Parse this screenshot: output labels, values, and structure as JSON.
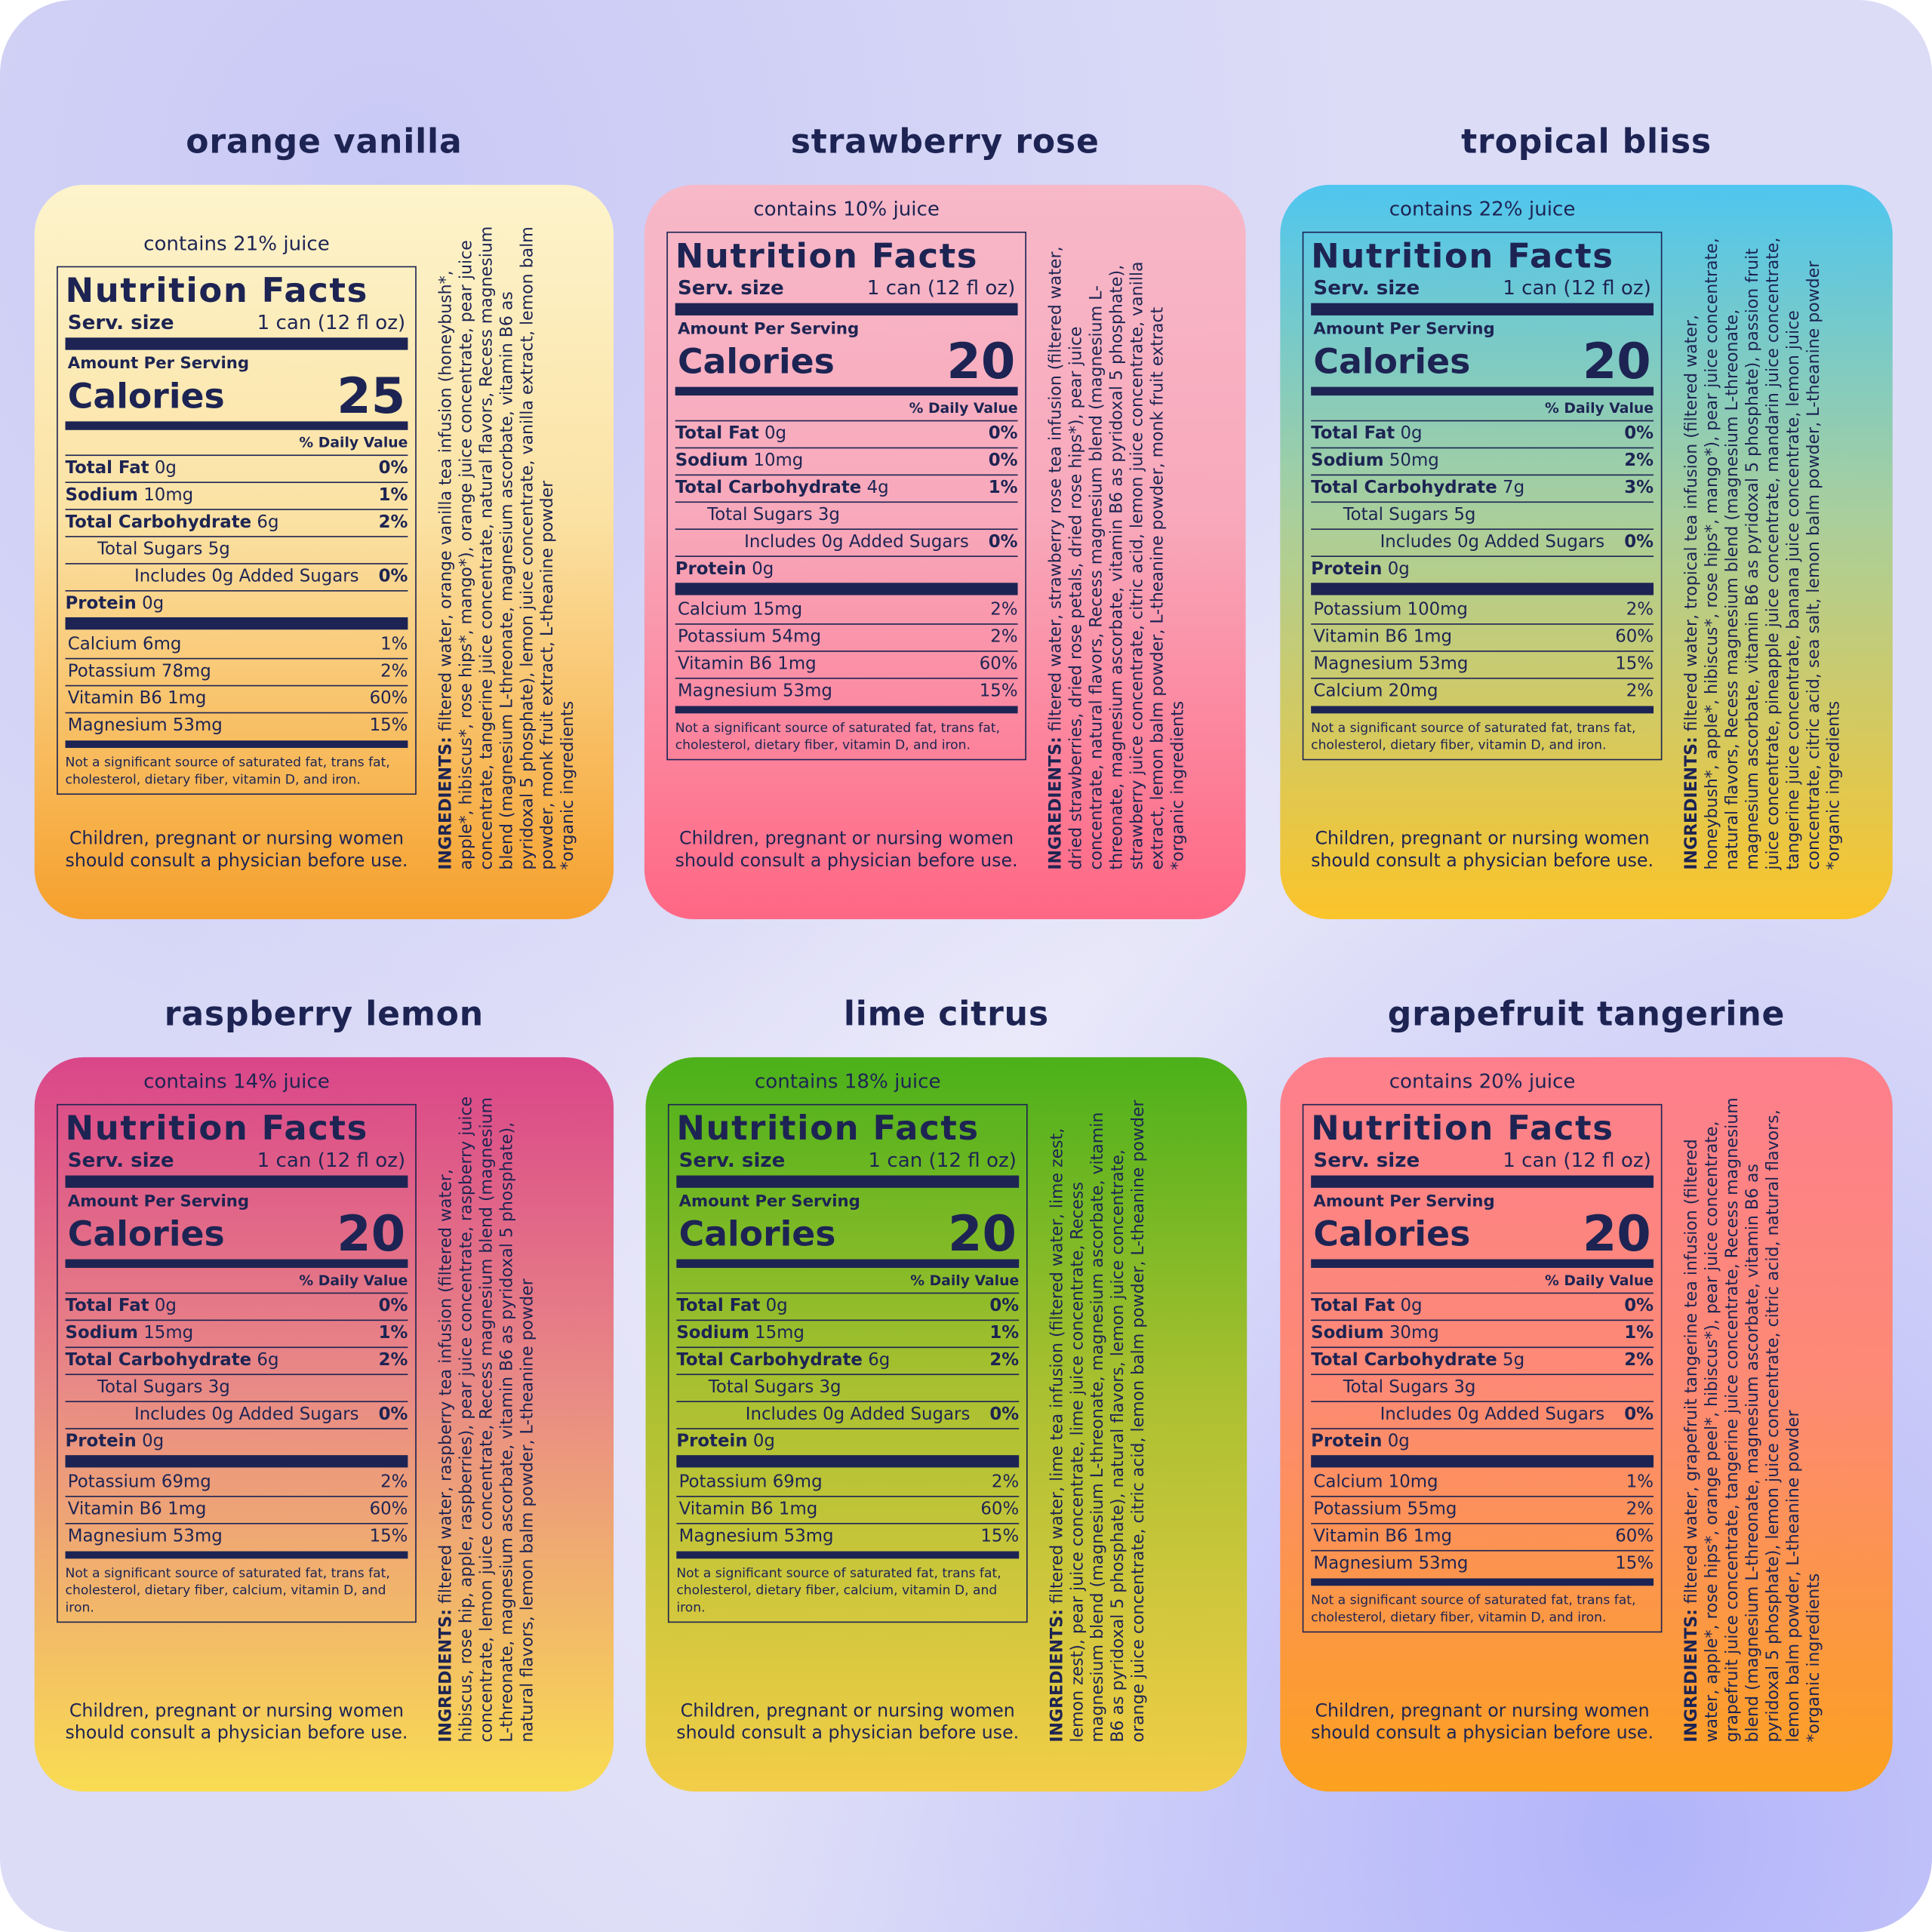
{
  "cards": [
    {
      "title": "orange vanilla",
      "colors": [
        "#fdf4cc",
        "#fbe2a4",
        "#f6a02c"
      ],
      "juice": "contains 21% juice",
      "heading": "Nutrition Facts",
      "serving_label": "Serv. size",
      "serving": "1 can (12 fl oz)",
      "amount_label": "Amount Per Serving",
      "calories_label": "Calories",
      "calories": 25,
      "dv_label": "% Daily Value",
      "rows": [
        {
          "kind": "nutrient",
          "name": "Total Fat",
          "amount": "0g",
          "dv": "0%"
        },
        {
          "kind": "nutrient",
          "name": "Sodium",
          "amount": "10mg",
          "dv": "1%"
        },
        {
          "kind": "nutrient",
          "name": "Total Carbohydrate",
          "amount": "6g",
          "dv": "2%"
        },
        {
          "kind": "sub",
          "name": "Total Sugars",
          "amount": "5g"
        },
        {
          "kind": "added",
          "name": "Includes 0g Added Sugars",
          "dv": "0%"
        },
        {
          "kind": "nutrient",
          "name": "Protein",
          "amount": "0g"
        }
      ],
      "minerals": [
        {
          "name": "Calcium",
          "amount": "6mg",
          "dv": "1%"
        },
        {
          "name": "Potassium",
          "amount": "78mg",
          "dv": "2%"
        },
        {
          "name": "Vitamin B6",
          "amount": "1mg",
          "dv": "60%"
        },
        {
          "name": "Magnesium",
          "amount": "53mg",
          "dv": "15%"
        }
      ],
      "footnote": "Not a significant source of saturated fat, trans fat, cholesterol, dietary fiber, vitamin D, and iron.",
      "warning": "Children, pregnant or nursing women should consult a physician before use.",
      "ingredients_label": "INGREDIENTS:",
      "ingredients": "filtered water, orange vanilla tea infusion (honeybush*, apple*, hibiscus*, rose hips*, mango*), orange juice concentrate, pear juice concentrate, tangerine juice concentrate, natural flavors, Recess magnesium blend (magnesium L-threonate, magnesium ascorbate, vitamin B6 as pyridoxal 5 phosphate), lemon juice concentrate, vanilla extract, lemon balm powder, monk fruit extract, L-theanine powder",
      "note": "*organic ingredients"
    },
    {
      "title": "strawberry rose",
      "colors": [
        "#f7b8c8",
        "#f8a9bb",
        "#ff6784"
      ],
      "juice": "contains 10% juice",
      "heading": "Nutrition Facts",
      "serving_label": "Serv. size",
      "serving": "1 can (12 fl oz)",
      "amount_label": "Amount Per Serving",
      "calories_label": "Calories",
      "calories": 20,
      "dv_label": "% Daily Value",
      "rows": [
        {
          "kind": "nutrient",
          "name": "Total Fat",
          "amount": "0g",
          "dv": "0%"
        },
        {
          "kind": "nutrient",
          "name": "Sodium",
          "amount": "10mg",
          "dv": "0%"
        },
        {
          "kind": "nutrient",
          "name": "Total Carbohydrate",
          "amount": "4g",
          "dv": "1%"
        },
        {
          "kind": "sub",
          "name": "Total Sugars",
          "amount": "3g"
        },
        {
          "kind": "added",
          "name": "Includes 0g Added Sugars",
          "dv": "0%"
        },
        {
          "kind": "nutrient",
          "name": "Protein",
          "amount": "0g"
        }
      ],
      "minerals": [
        {
          "name": "Calcium",
          "amount": "15mg",
          "dv": "2%"
        },
        {
          "name": "Potassium",
          "amount": "54mg",
          "dv": "2%"
        },
        {
          "name": "Vitamin B6",
          "amount": "1mg",
          "dv": "60%"
        },
        {
          "name": "Magnesium",
          "amount": "53mg",
          "dv": "15%"
        }
      ],
      "footnote": "Not a significant source of saturated fat, trans fat, cholesterol, dietary fiber, vitamin D, and iron.",
      "warning": "Children, pregnant or nursing women should consult a physician before use.",
      "ingredients_label": "INGREDIENTS:",
      "ingredients": "filtered water, strawberry rose tea infusion (filtered water, dried strawberries, dried rose petals, dried rose hips*), pear juice concentrate, natural flavors, Recess magnesium blend (magnesium L-threonate, magnesium ascorbate, vitamin B6 as pyridoxal 5 phosphate), strawberry juice concentrate, citric acid, lemon juice concentrate, vanilla extract, lemon balm powder, L-theanine powder, monk fruit extract",
      "note": "*organic ingredients"
    },
    {
      "title": "tropical bliss",
      "colors": [
        "#4fc6ef",
        "#a9cf9c",
        "#fbc42a"
      ],
      "juice": "contains 22% juice",
      "heading": "Nutrition Facts",
      "serving_label": "Serv. size",
      "serving": "1 can (12 fl oz)",
      "amount_label": "Amount Per Serving",
      "calories_label": "Calories",
      "calories": 20,
      "dv_label": "% Daily Value",
      "rows": [
        {
          "kind": "nutrient",
          "name": "Total Fat",
          "amount": "0g",
          "dv": "0%"
        },
        {
          "kind": "nutrient",
          "name": "Sodium",
          "amount": "50mg",
          "dv": "2%"
        },
        {
          "kind": "nutrient",
          "name": "Total Carbohydrate",
          "amount": "7g",
          "dv": "3%"
        },
        {
          "kind": "sub",
          "name": "Total Sugars",
          "amount": "5g"
        },
        {
          "kind": "added",
          "name": "Includes 0g Added Sugars",
          "dv": "0%"
        },
        {
          "kind": "nutrient",
          "name": "Protein",
          "amount": "0g"
        }
      ],
      "minerals": [
        {
          "name": "Potassium",
          "amount": "100mg",
          "dv": "2%"
        },
        {
          "name": "Vitamin B6",
          "amount": "1mg",
          "dv": "60%"
        },
        {
          "name": "Magnesium",
          "amount": "53mg",
          "dv": "15%"
        },
        {
          "name": "Calcium",
          "amount": "20mg",
          "dv": "2%"
        }
      ],
      "footnote": "Not a significant source of saturated fat, trans fat, cholesterol, dietary fiber, vitamin D, and iron.",
      "warning": "Children, pregnant or nursing women should consult a physician before use.",
      "ingredients_label": "INGREDIENTS:",
      "ingredients": "filtered water, tropical tea infusion (filtered water, honeybush*, apple*, hibiscus*, rose hips*, mango*), pear juice concentrate, natural flavors, Recess magnesium blend (magnesium L-threonate, magnesium ascorbate, vitamin B6 as pyridoxal 5 phosphate), passion fruit juice concentrate, pineapple juice concentrate, mandarin juice concentrate, tangerine juice concentrate, banana juice concentrate, lemon juice concentrate, citric acid, sea salt, lemon balm powder, L-theanine powder",
      "note": "*organic ingredients"
    },
    {
      "title": "raspberry lemon",
      "colors": [
        "#da4689",
        "#e98a86",
        "#f9dc52"
      ],
      "juice": "contains 14% juice",
      "heading": "Nutrition Facts",
      "serving_label": "Serv. size",
      "serving": "1 can (12 fl oz)",
      "amount_label": "Amount Per Serving",
      "calories_label": "Calories",
      "calories": 20,
      "dv_label": "% Daily Value",
      "rows": [
        {
          "kind": "nutrient",
          "name": "Total Fat",
          "amount": "0g",
          "dv": "0%"
        },
        {
          "kind": "nutrient",
          "name": "Sodium",
          "amount": "15mg",
          "dv": "1%"
        },
        {
          "kind": "nutrient",
          "name": "Total Carbohydrate",
          "amount": "6g",
          "dv": "2%"
        },
        {
          "kind": "sub",
          "name": "Total Sugars",
          "amount": "3g"
        },
        {
          "kind": "added",
          "name": "Includes 0g Added Sugars",
          "dv": "0%"
        },
        {
          "kind": "nutrient",
          "name": "Protein",
          "amount": "0g"
        }
      ],
      "minerals": [
        {
          "name": "Potassium",
          "amount": "69mg",
          "dv": "2%"
        },
        {
          "name": "Vitamin B6",
          "amount": "1mg",
          "dv": "60%"
        },
        {
          "name": "Magnesium",
          "amount": "53mg",
          "dv": "15%"
        }
      ],
      "footnote": "Not a significant source of saturated fat, trans fat, cholesterol, dietary fiber, calcium, vitamin D, and iron.",
      "warning": "Children, pregnant or nursing women should consult a physician before use.",
      "ingredients_label": "INGREDIENTS:",
      "ingredients": "filtered water, raspberry tea infusion (filtered water, hibiscus, rose hip, apple, raspberries), pear juice concentrate, raspberry juice concentrate, lemon juice concentrate, Recess magnesium blend (magnesium L-threonate, magnesium ascorbate, vitamin B6 as pyridoxal 5 phosphate), natural flavors, lemon balm powder, L-theanine powder"
    },
    {
      "title": "lime citrus",
      "colors": [
        "#4bb11a",
        "#a9c030",
        "#f3cd48"
      ],
      "juice": "contains 18% juice",
      "heading": "Nutrition Facts",
      "serving_label": "Serv. size",
      "serving": "1 can (12 fl oz)",
      "amount_label": "Amount Per Serving",
      "calories_label": "Calories",
      "calories": 20,
      "dv_label": "% Daily Value",
      "rows": [
        {
          "kind": "nutrient",
          "name": "Total Fat",
          "amount": "0g",
          "dv": "0%"
        },
        {
          "kind": "nutrient",
          "name": "Sodium",
          "amount": "15mg",
          "dv": "1%"
        },
        {
          "kind": "nutrient",
          "name": "Total Carbohydrate",
          "amount": "6g",
          "dv": "2%"
        },
        {
          "kind": "sub",
          "name": "Total Sugars",
          "amount": "3g"
        },
        {
          "kind": "added",
          "name": "Includes 0g Added Sugars",
          "dv": "0%"
        },
        {
          "kind": "nutrient",
          "name": "Protein",
          "amount": "0g"
        }
      ],
      "minerals": [
        {
          "name": "Potassium",
          "amount": "69mg",
          "dv": "2%"
        },
        {
          "name": "Vitamin B6",
          "amount": "1mg",
          "dv": "60%"
        },
        {
          "name": "Magnesium",
          "amount": "53mg",
          "dv": "15%"
        }
      ],
      "footnote": "Not a significant source of saturated fat, trans fat, cholesterol, dietary fiber, calcium, vitamin D, and iron.",
      "warning": "Children, pregnant or nursing women should consult a physician before use.",
      "ingredients_label": "INGREDIENTS:",
      "ingredients": "filtered water, lime tea infusion (filtered water, lime zest, lemon zest), pear juice concentrate, lime juice concentrate, Recess magnesium blend (magnesium L-threonate, magnesium ascorbate, vitamin B6 as pyridoxal 5 phosphate), natural flavors, lemon juice concentrate, orange juice concentrate, citric acid, lemon balm powder, L-theanine powder"
    },
    {
      "title": "grapefruit tangerine",
      "colors": [
        "#fd7f8d",
        "#fd8a74",
        "#fca11f"
      ],
      "juice": "contains 20% juice",
      "heading": "Nutrition Facts",
      "serving_label": "Serv. size",
      "serving": "1 can (12 fl oz)",
      "amount_label": "Amount Per Serving",
      "calories_label": "Calories",
      "calories": 20,
      "dv_label": "% Daily Value",
      "rows": [
        {
          "kind": "nutrient",
          "name": "Total Fat",
          "amount": "0g",
          "dv": "0%"
        },
        {
          "kind": "nutrient",
          "name": "Sodium",
          "amount": "30mg",
          "dv": "1%"
        },
        {
          "kind": "nutrient",
          "name": "Total Carbohydrate",
          "amount": "5g",
          "dv": "2%"
        },
        {
          "kind": "sub",
          "name": "Total Sugars",
          "amount": "3g"
        },
        {
          "kind": "added",
          "name": "Includes 0g Added Sugars",
          "dv": "0%"
        },
        {
          "kind": "nutrient",
          "name": "Protein",
          "amount": "0g"
        }
      ],
      "minerals": [
        {
          "name": "Calcium",
          "amount": "10mg",
          "dv": "1%"
        },
        {
          "name": "Potassium",
          "amount": "55mg",
          "dv": "2%"
        },
        {
          "name": "Vitamin B6",
          "amount": "1mg",
          "dv": "60%"
        },
        {
          "name": "Magnesium",
          "amount": "53mg",
          "dv": "15%"
        }
      ],
      "footnote": "Not a significant source of saturated fat, trans fat, cholesterol, dietary fiber, vitamin D, and iron.",
      "warning": "Children, pregnant or nursing women should consult a physician before use.",
      "ingredients_label": "INGREDIENTS:",
      "ingredients": "filtered water, grapefruit tangerine tea infusion (filtered water, apple*, rose hips*, orange peel*, hibiscus*), pear juice concentrate, grapefruit juice concentrate, tangerine juice concentrate, Recess magnesium blend (magnesium L-threonate, magnesium ascorbate, vitamin B6 as pyridoxal 5 phosphate), lemon juice concentrate, citric acid, natural flavors, lemon balm powder, L-theanine powder",
      "note": "*organic ingredients"
    }
  ]
}
